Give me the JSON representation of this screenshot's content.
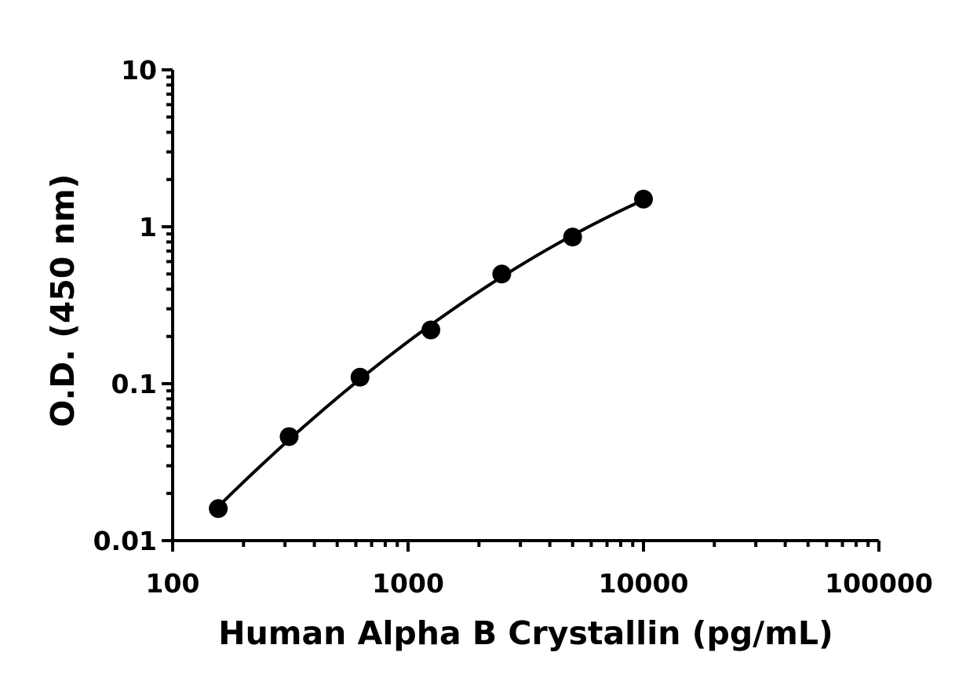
{
  "chart_data": {
    "type": "scatter",
    "title": "",
    "xlabel": "Human Alpha B Crystallin (pg/mL)",
    "ylabel": "O.D. (450 nm)",
    "xscale": "log",
    "yscale": "log",
    "xlim": [
      100,
      100000
    ],
    "ylim": [
      0.01,
      10
    ],
    "x_ticks": [
      100,
      1000,
      10000,
      100000
    ],
    "x_tick_labels": [
      "100",
      "1000",
      "10000",
      "100000"
    ],
    "y_ticks": [
      0.01,
      0.1,
      1,
      10
    ],
    "y_tick_labels": [
      "0.01",
      "0.1",
      "1",
      "10"
    ],
    "grid": false,
    "legend": "none",
    "series": [
      {
        "x": [
          156.25,
          312.5,
          625,
          1250,
          2500,
          5000,
          10000
        ],
        "y": [
          0.016,
          0.046,
          0.11,
          0.22,
          0.5,
          0.86,
          1.5
        ],
        "color": "#000000",
        "marker": "filled-circle",
        "fit_line": true
      }
    ]
  }
}
